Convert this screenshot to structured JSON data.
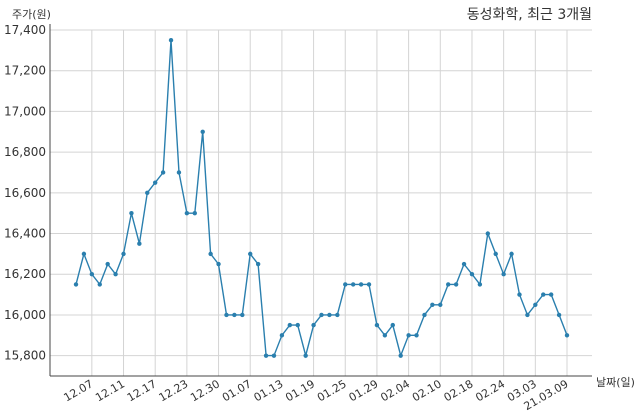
{
  "chart_data": {
    "type": "line",
    "title": "동성화학, 최근 3개월",
    "xlabel": "날짜(일)",
    "ylabel": "주가(원)",
    "ylim": [
      15700,
      17400
    ],
    "yticks": [
      15800,
      16000,
      16200,
      16400,
      16600,
      16800,
      17000,
      17200,
      17400
    ],
    "ytick_labels": [
      "15,800",
      "16,000",
      "16,200",
      "16,400",
      "16,600",
      "16,800",
      "17,000",
      "17,200",
      "17,400"
    ],
    "grid": true,
    "line_color": "#2a7fae",
    "categories": [
      "12.03",
      "12.04",
      "12.07",
      "12.08",
      "12.09",
      "12.10",
      "12.11",
      "12.14",
      "12.15",
      "12.16",
      "12.17",
      "12.18",
      "12.21",
      "12.22",
      "12.23",
      "12.24",
      "12.28",
      "12.29",
      "12.30",
      "01.04",
      "01.05",
      "01.06",
      "01.07",
      "01.08",
      "01.11",
      "01.12",
      "01.13",
      "01.14",
      "01.15",
      "01.18",
      "01.19",
      "01.20",
      "01.21",
      "01.22",
      "01.25",
      "01.26",
      "01.27",
      "01.28",
      "01.29",
      "02.01",
      "02.02",
      "02.03",
      "02.04",
      "02.05",
      "02.08",
      "02.09",
      "02.10",
      "02.15",
      "02.16",
      "02.17",
      "02.18",
      "02.19",
      "02.22",
      "02.23",
      "02.24",
      "02.25",
      "02.26",
      "03.02",
      "03.03",
      "03.04",
      "03.05",
      "03.08",
      "03.09"
    ],
    "x_tick_labels": [
      "12.07",
      "12.11",
      "12.17",
      "12.23",
      "12.30",
      "01.07",
      "01.13",
      "01.19",
      "01.25",
      "01.29",
      "02.04",
      "02.10",
      "02.18",
      "02.24",
      "03.03",
      "21.03.09"
    ],
    "values": [
      16150,
      16300,
      16200,
      16150,
      16250,
      16200,
      16300,
      16500,
      16350,
      16600,
      16650,
      16700,
      17350,
      16700,
      16500,
      16500,
      16900,
      16300,
      16250,
      16000,
      16000,
      16000,
      16300,
      16250,
      15800,
      15800,
      15900,
      15950,
      15950,
      15800,
      15950,
      16000,
      16000,
      16000,
      16150,
      16150,
      16150,
      16150,
      15950,
      15900,
      15950,
      15800,
      15900,
      15900,
      16000,
      16050,
      16050,
      16150,
      16150,
      16250,
      16200,
      16150,
      16400,
      16300,
      16200,
      16300,
      16100,
      16000,
      16050,
      16100,
      16100,
      16000,
      15900
    ]
  }
}
